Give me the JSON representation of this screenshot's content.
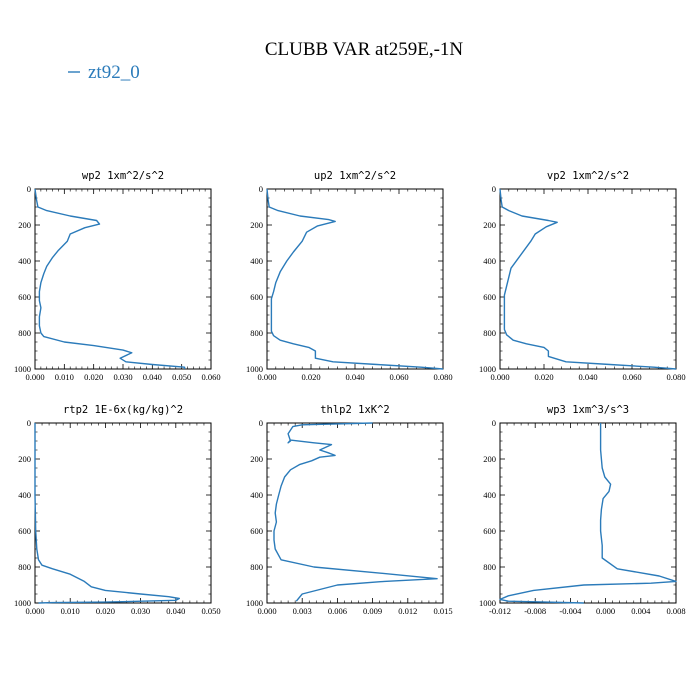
{
  "figure": {
    "title": "CLUBB VAR at259E,-1N",
    "legend": {
      "label": "zt92_0",
      "color": "#2b7bba",
      "placement": "top-left"
    }
  },
  "chart_data": [
    {
      "type": "line",
      "title": "wp2  1xm^2/s^2",
      "xlim": [
        0,
        0.06
      ],
      "xticks": [
        "0.000",
        "0.010",
        "0.020",
        "0.030",
        "0.040",
        "0.050",
        "0.060"
      ],
      "ylim": [
        0,
        1000
      ],
      "yticks": [
        "0",
        "200",
        "400",
        "600",
        "800",
        "1000"
      ],
      "y_inverted": true,
      "series": [
        {
          "color": "#2b7bba",
          "x": [
            0.0,
            0.0005,
            0.001,
            0.004,
            0.012,
            0.021,
            0.022,
            0.017,
            0.012,
            0.011,
            0.008,
            0.006,
            0.004,
            0.003,
            0.002,
            0.0015,
            0.0015,
            0.002,
            0.0015,
            0.0015,
            0.002,
            0.003,
            0.01,
            0.02,
            0.03,
            0.033,
            0.029,
            0.031,
            0.04,
            0.051,
            0.051
          ],
          "y": [
            0,
            60,
            100,
            120,
            150,
            175,
            195,
            215,
            250,
            290,
            340,
            380,
            430,
            470,
            520,
            570,
            620,
            660,
            710,
            760,
            800,
            820,
            850,
            870,
            895,
            910,
            940,
            960,
            975,
            990,
            1000
          ]
        }
      ]
    },
    {
      "type": "line",
      "title": "up2  1xm^2/s^2",
      "xlim": [
        0,
        0.08
      ],
      "xticks": [
        "0.000",
        "0.020",
        "0.040",
        "0.060",
        "0.080"
      ],
      "ylim": [
        0,
        1000
      ],
      "yticks": [
        "0",
        "200",
        "400",
        "600",
        "800",
        "1000"
      ],
      "y_inverted": true,
      "series": [
        {
          "color": "#2b7bba",
          "x": [
            0.0,
            0.0005,
            0.001,
            0.005,
            0.015,
            0.028,
            0.031,
            0.023,
            0.018,
            0.016,
            0.012,
            0.009,
            0.006,
            0.004,
            0.003,
            0.002,
            0.002,
            0.002,
            0.002,
            0.002,
            0.003,
            0.006,
            0.012,
            0.019,
            0.022,
            0.022,
            0.03,
            0.05,
            0.07,
            0.08
          ],
          "y": [
            0,
            60,
            100,
            120,
            150,
            170,
            180,
            205,
            240,
            290,
            350,
            400,
            460,
            520,
            570,
            610,
            650,
            700,
            750,
            790,
            815,
            840,
            860,
            880,
            900,
            940,
            960,
            975,
            990,
            1000
          ]
        }
      ]
    },
    {
      "type": "line",
      "title": "vp2  1xm^2/s^2",
      "xlim": [
        0,
        0.08
      ],
      "xticks": [
        "0.000",
        "0.020",
        "0.040",
        "0.060",
        "0.080"
      ],
      "ylim": [
        0,
        1000
      ],
      "yticks": [
        "0",
        "200",
        "400",
        "600",
        "800",
        "1000"
      ],
      "y_inverted": true,
      "series": [
        {
          "color": "#2b7bba",
          "x": [
            0.0,
            0.0005,
            0.001,
            0.004,
            0.01,
            0.022,
            0.026,
            0.021,
            0.016,
            0.014,
            0.011,
            0.008,
            0.005,
            0.004,
            0.003,
            0.002,
            0.002,
            0.002,
            0.002,
            0.002,
            0.003,
            0.006,
            0.012,
            0.02,
            0.022,
            0.022,
            0.03,
            0.05,
            0.07,
            0.08
          ],
          "y": [
            0,
            60,
            100,
            120,
            150,
            175,
            185,
            210,
            250,
            290,
            340,
            390,
            440,
            490,
            540,
            590,
            640,
            690,
            740,
            780,
            810,
            840,
            860,
            880,
            900,
            930,
            960,
            975,
            990,
            1000
          ]
        }
      ]
    },
    {
      "type": "line",
      "title": "rtp2  1E-6x(kg/kg)^2",
      "xlim": [
        0,
        0.05
      ],
      "xticks": [
        "0.000",
        "0.010",
        "0.020",
        "0.030",
        "0.040",
        "0.050"
      ],
      "ylim": [
        0,
        1000
      ],
      "yticks": [
        "0",
        "200",
        "400",
        "600",
        "800",
        "1000"
      ],
      "y_inverted": true,
      "series": [
        {
          "color": "#2b7bba",
          "x": [
            0.0,
            0.0,
            0.0002,
            0.0005,
            0.001,
            0.002,
            0.005,
            0.01,
            0.014,
            0.016,
            0.02,
            0.03,
            0.038,
            0.041,
            0.04,
            0.02,
            0.005,
            0.001
          ],
          "y": [
            0,
            400,
            600,
            700,
            760,
            790,
            810,
            840,
            880,
            910,
            930,
            950,
            965,
            975,
            985,
            995,
            998,
            1000
          ]
        }
      ]
    },
    {
      "type": "line",
      "title": "thlp2  1xK^2",
      "xlim": [
        0,
        0.015
      ],
      "xticks": [
        "0.000",
        "0.003",
        "0.006",
        "0.009",
        "0.012",
        "0.015"
      ],
      "ylim": [
        0,
        1000
      ],
      "yticks": [
        "0",
        "200",
        "400",
        "600",
        "800",
        "1000"
      ],
      "y_inverted": true,
      "series": [
        {
          "color": "#2b7bba",
          "x": [
            0.009,
            0.003,
            0.0022,
            0.0018,
            0.002,
            0.0018,
            0.002,
            0.004,
            0.0055,
            0.0045,
            0.0052,
            0.0058,
            0.0045,
            0.0038,
            0.0028,
            0.002,
            0.0015,
            0.0012,
            0.001,
            0.0008,
            0.0007,
            0.0008,
            0.0006,
            0.0006,
            0.0007,
            0.0012,
            0.004,
            0.009,
            0.0145,
            0.01,
            0.006,
            0.003,
            0.0025
          ],
          "y": [
            0,
            10,
            20,
            60,
            100,
            110,
            95,
            110,
            120,
            150,
            165,
            180,
            190,
            210,
            230,
            260,
            300,
            350,
            400,
            450,
            500,
            550,
            600,
            650,
            700,
            760,
            800,
            830,
            865,
            880,
            900,
            950,
            990
          ]
        }
      ]
    },
    {
      "type": "line",
      "title": "wp3  1xm^3/s^3",
      "xlim": [
        -0.012,
        0.009
      ],
      "xticks": [
        "-0.012",
        "-0.008",
        "-0.004",
        "0.000",
        "0.004",
        "0.008"
      ],
      "ylim": [
        0,
        1000
      ],
      "yticks": [
        "0",
        "200",
        "400",
        "600",
        "800",
        "1000"
      ],
      "y_inverted": true,
      "series": [
        {
          "color": "#2b7bba",
          "x": [
            0.0,
            0.0,
            0.0001,
            0.0002,
            0.0005,
            0.0012,
            0.001,
            0.0003,
            0.0001,
            0.0,
            0.0,
            0.0002,
            0.0002,
            0.002,
            0.007,
            0.009,
            0.006,
            -0.002,
            -0.008,
            -0.011,
            -0.012,
            -0.011,
            -0.002
          ],
          "y": [
            0,
            150,
            200,
            250,
            300,
            340,
            380,
            420,
            480,
            540,
            600,
            680,
            750,
            810,
            850,
            880,
            890,
            900,
            930,
            960,
            980,
            990,
            1000
          ]
        }
      ]
    }
  ]
}
